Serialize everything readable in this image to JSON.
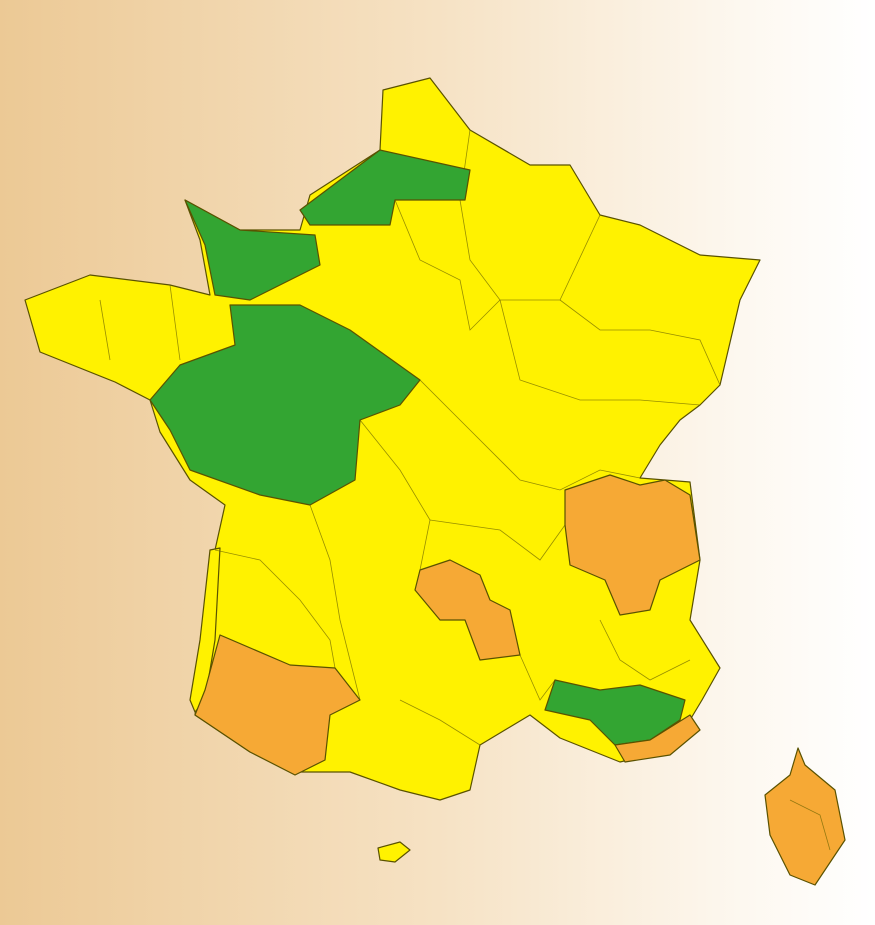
{
  "map": {
    "colors": {
      "yellow": "#fff200",
      "green": "#33a532",
      "orange": "#f6a935",
      "border": "#5a5200"
    },
    "levels": [
      {
        "color": "yellow",
        "regions": [
          "mainland-default",
          "gironde-coast",
          "island-south"
        ]
      },
      {
        "color": "green",
        "regions": [
          "normandy-west",
          "normandy-east-picardy",
          "centre-west",
          "provence-inland"
        ]
      },
      {
        "color": "orange",
        "regions": [
          "alps",
          "massif-central",
          "south-west",
          "var-coast",
          "corsica"
        ]
      }
    ]
  }
}
